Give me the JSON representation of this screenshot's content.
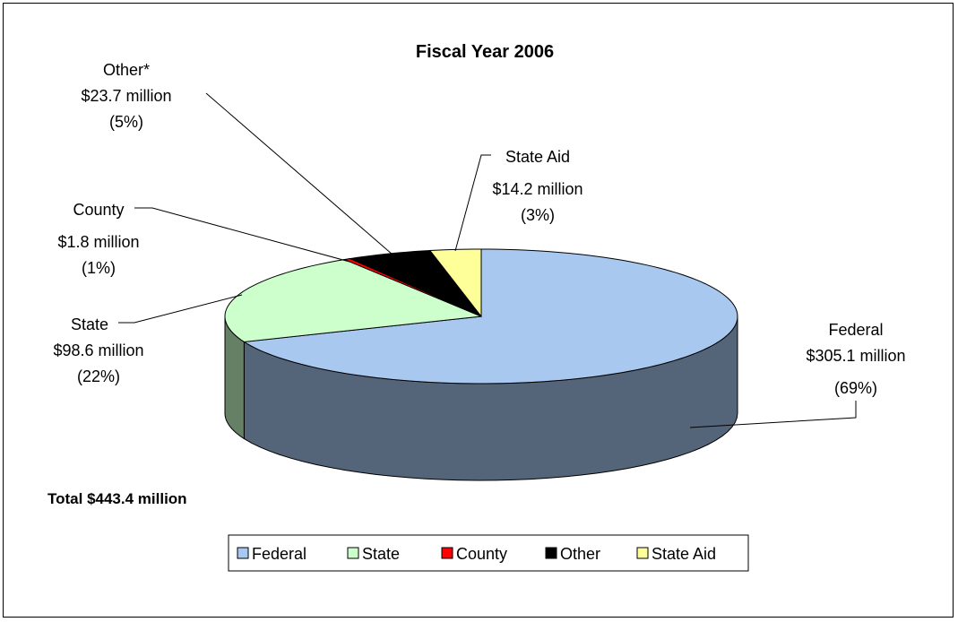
{
  "chart_data": {
    "type": "pie",
    "title": "Fiscal Year 2006",
    "slices": [
      {
        "name": "Federal",
        "value": 305.1,
        "value_label": "$305.1 million",
        "percent_label": "(69%)",
        "color": "#A9C8F0",
        "side_color": "#54657A"
      },
      {
        "name": "State",
        "value": 98.6,
        "value_label": "$98.6 million",
        "percent_label": "(22%)",
        "color": "#CCFFCC",
        "side_color": "#668066"
      },
      {
        "name": "County",
        "value": 1.8,
        "value_label": "$1.8 million",
        "percent_label": "(1%)",
        "color": "#FF0000",
        "side_color": "#800000"
      },
      {
        "name": "Other",
        "value": 23.7,
        "value_label": "$23.7 million",
        "percent_label": "(5%)",
        "color": "#000000",
        "side_color": "#000000"
      },
      {
        "name": "State Aid",
        "value": 14.2,
        "value_label": "$14.2 million",
        "percent_label": "(3%)",
        "color": "#FFFF99",
        "side_color": "#80804D"
      }
    ],
    "legend_position": "bottom"
  },
  "labels": {
    "other": "Other*",
    "county": "County",
    "state": "State",
    "federal": "Federal",
    "state_aid": "State Aid"
  },
  "total_label": "Total $443.4 million",
  "legend": [
    "Federal",
    "State",
    "County",
    "Other",
    "State Aid"
  ]
}
